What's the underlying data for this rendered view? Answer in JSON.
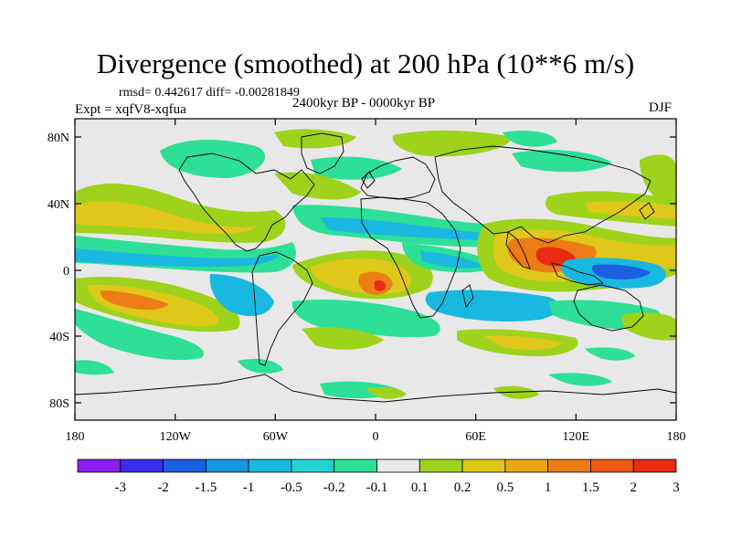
{
  "title": "Divergence (smoothed) at 200 hPa (10**6 m/s)",
  "stats": "rmsd= 0.442617 diff= -0.00281849",
  "period": "2400kyr BP - 0000kyr BP",
  "experiment": "Expt = xqfV8-xqfua",
  "season": "DJF",
  "lat_labels": [
    "80N",
    "40N",
    "0",
    "40S",
    "80S"
  ],
  "lon_labels": [
    "180",
    "120W",
    "60W",
    "0",
    "60E",
    "120E",
    "180"
  ],
  "colorbar": {
    "labels": [
      "-3",
      "-2",
      "-1.5",
      "-1",
      "-0.5",
      "-0.2",
      "-0.1",
      "0.1",
      "0.2",
      "0.5",
      "1",
      "1.5",
      "2",
      "3"
    ],
    "colors": [
      "#8a1ff0",
      "#3b2de8",
      "#1c5fe0",
      "#1696e0",
      "#18b8e0",
      "#22d2cf",
      "#2ddf97",
      "#e8e8e8",
      "#9ed21b",
      "#e0c81a",
      "#e9a716",
      "#ec7d16",
      "#ec5a14",
      "#ea2a12"
    ]
  },
  "map_colors": {
    "ocean_background": "#e8e8e8",
    "weak_negative": "#2ddf97",
    "negative": "#18b8e0",
    "strong_negative": "#1c5fe0",
    "weak_positive": "#9ed21b",
    "positive": "#e0c81a",
    "strong_positive": "#ec7d16",
    "peak_positive": "#ea2a12",
    "coastline": "#000000"
  }
}
